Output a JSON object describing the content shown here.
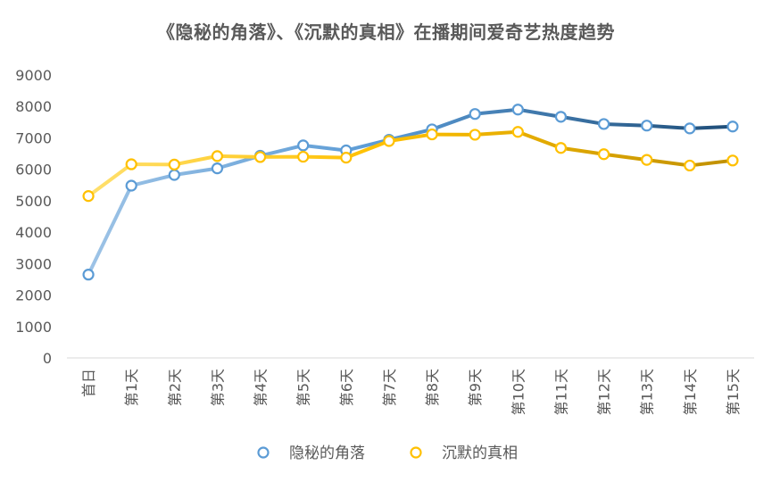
{
  "chart_data": {
    "type": "line",
    "title": "《隐秘的角落》、《沉默的真相》在播期间爱奇艺热度趋势",
    "categories": [
      "首日",
      "第1天",
      "第2天",
      "第3天",
      "第4天",
      "第5天",
      "第6天",
      "第7天",
      "第8天",
      "第9天",
      "第10天",
      "第11天",
      "第12天",
      "第13天",
      "第14天",
      "第15天"
    ],
    "ylim": [
      0,
      9000
    ],
    "yticks": [
      0,
      1000,
      2000,
      3000,
      4000,
      5000,
      6000,
      7000,
      8000,
      9000
    ],
    "grid": false,
    "legend": "bottom",
    "series": [
      {
        "name": "隐秘的角落",
        "values": [
          2650,
          5480,
          5820,
          6030,
          6430,
          6760,
          6600,
          6940,
          7270,
          7760,
          7900,
          7670,
          7440,
          7390,
          7300,
          7360
        ],
        "color_light": "#9DC3E6",
        "color_dark": "#1F4E79",
        "marker_stroke": "#5B9BD5"
      },
      {
        "name": "沉默的真相",
        "values": [
          5150,
          6160,
          6150,
          6420,
          6390,
          6400,
          6370,
          6900,
          7110,
          7100,
          7190,
          6680,
          6480,
          6300,
          6120,
          6280
        ],
        "color_light": "#FFE06E",
        "color_dark": "#C09000",
        "marker_stroke": "#FFC000"
      }
    ]
  }
}
